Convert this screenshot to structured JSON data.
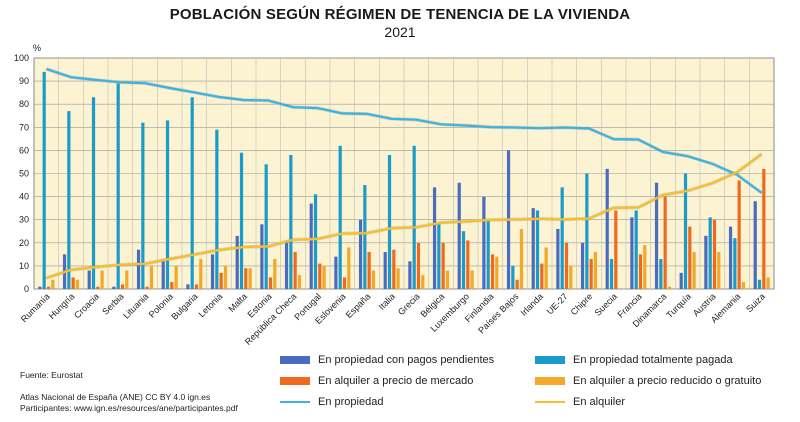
{
  "chart_data": {
    "type": "bar",
    "title": "POBLACIÓN SEGÚN RÉGIMEN DE TENENCIA DE LA VIVIENDA",
    "subtitle": "2021",
    "ylabel": "%",
    "ylim": [
      0,
      100
    ],
    "yticks": [
      0,
      10,
      20,
      30,
      40,
      50,
      60,
      70,
      80,
      90,
      100
    ],
    "categories": [
      "Rumanía",
      "Hungría",
      "Croacia",
      "Serbia",
      "Lituania",
      "Polonia",
      "Bulgaria",
      "Letonia",
      "Malta",
      "Estonia",
      "República Checa",
      "Portugal",
      "Eslovenia",
      "España",
      "Italia",
      "Grecia",
      "Bélgica",
      "Luxemburgo",
      "Finlandia",
      "Países Bajos",
      "Irlanda",
      "UE-27",
      "Chipre",
      "Suecia",
      "Francia",
      "Dinamarca",
      "Turquía",
      "Austria",
      "Alemania",
      "Suiza"
    ],
    "series": [
      {
        "name": "En propiedad con pagos pendientes",
        "type": "bar",
        "color": "#4a6cc0",
        "values": [
          1,
          15,
          8,
          1,
          17,
          13,
          2,
          15,
          23,
          28,
          21,
          37,
          14,
          30,
          16,
          12,
          44,
          46,
          40,
          60,
          35,
          26,
          20,
          52,
          31,
          46,
          7,
          23,
          27,
          38
        ]
      },
      {
        "name": "En propiedad totalmente pagada",
        "type": "bar",
        "color": "#1b9bc8",
        "values": [
          94,
          77,
          83,
          89,
          72,
          73,
          83,
          69,
          59,
          54,
          58,
          41,
          62,
          45,
          58,
          62,
          28,
          25,
          30,
          10,
          34,
          44,
          50,
          13,
          34,
          13,
          50,
          31,
          22,
          4
        ]
      },
      {
        "name": "En alquiler a precio de mercado",
        "type": "bar",
        "color": "#f06a1e",
        "values": [
          1,
          5,
          1,
          2,
          1,
          3,
          2,
          7,
          9,
          5,
          16,
          11,
          5,
          16,
          17,
          20,
          20,
          21,
          15,
          4,
          11,
          20,
          13,
          34,
          15,
          40,
          27,
          30,
          47,
          52
        ]
      },
      {
        "name": "En alquiler a precio reducido o gratuito",
        "type": "bar",
        "color": "#f2a82a",
        "values": [
          4,
          4,
          8,
          8,
          10,
          10,
          13,
          10,
          9,
          13,
          6,
          10,
          18,
          8,
          9,
          6,
          8,
          8,
          14,
          26,
          18,
          10,
          16,
          0,
          19,
          1,
          16,
          16,
          3,
          5
        ]
      },
      {
        "name": "En propiedad",
        "type": "line",
        "color": "#3bb3e0",
        "values": [
          95.3,
          91.7,
          90.5,
          89.5,
          89.1,
          87,
          85.1,
          83.1,
          81.8,
          81.6,
          78.7,
          78.3,
          76,
          75.8,
          73.7,
          73.3,
          71.3,
          70.8,
          70.1,
          69.9,
          69.6,
          69.9,
          69.5,
          64.9,
          64.7,
          59.3,
          57.5,
          54.2,
          49.5,
          41.6
        ]
      },
      {
        "name": "En alquiler",
        "type": "line",
        "color": "#f5c02a",
        "values": [
          4.7,
          8.3,
          9.5,
          10.5,
          10.9,
          13,
          14.9,
          16.9,
          18.2,
          18.4,
          21.3,
          21.7,
          24,
          24.2,
          26.3,
          26.7,
          28.7,
          29.2,
          29.9,
          30.1,
          30.4,
          30.1,
          30.5,
          35.1,
          35.3,
          40.7,
          42.5,
          45.8,
          50.5,
          58.4
        ]
      }
    ],
    "grid": true,
    "legend": "bottom"
  },
  "notes": {
    "source": "Fuente: Eurostat",
    "credit_line1": "Atlas Nacional de España (ANE) CC BY 4.0 ign.es",
    "credit_line2": "Participantes: www.ign.es/resources/ane/participantes.pdf"
  }
}
